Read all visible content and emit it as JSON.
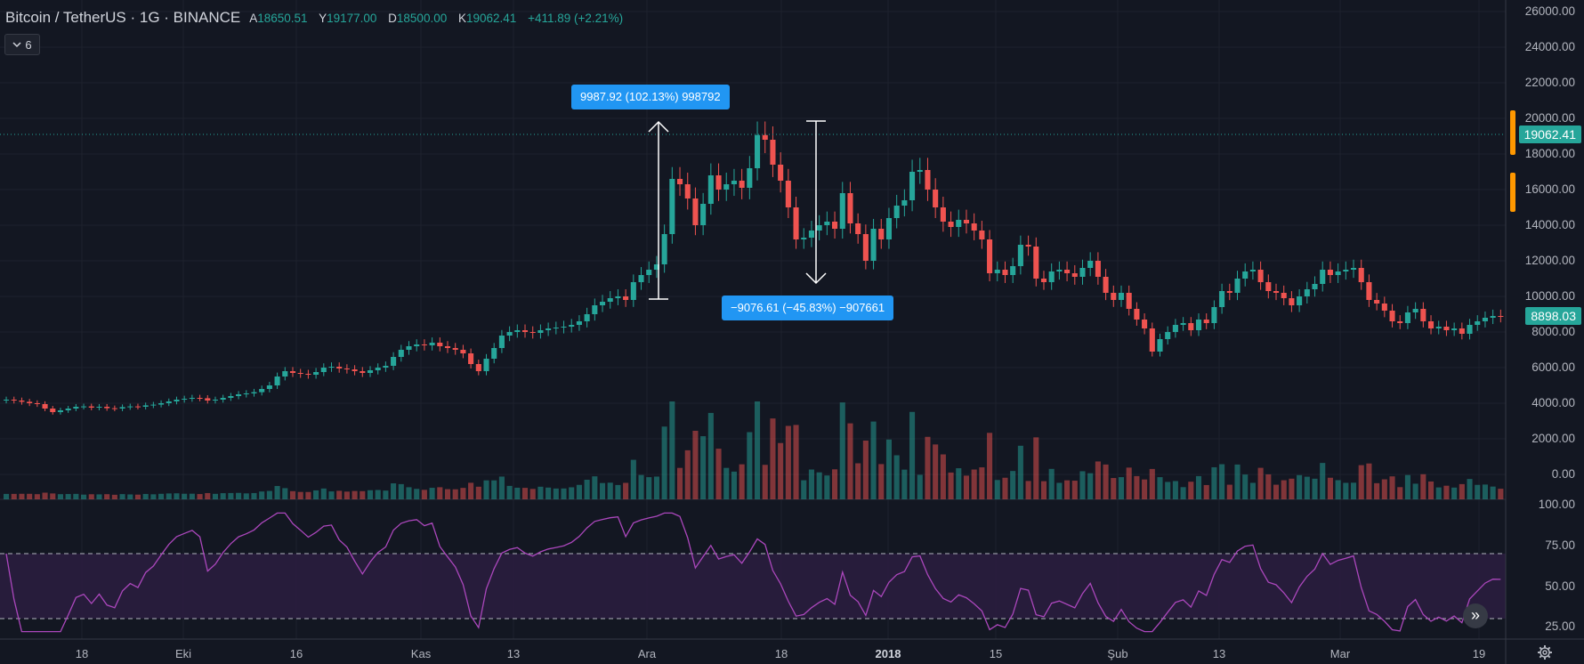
{
  "header": {
    "title": "Bitcoin / TetherUS · 1G · BINANCE",
    "ohlc": [
      {
        "label": "A",
        "value": "18650.51"
      },
      {
        "label": "Y",
        "value": "19177.00"
      },
      {
        "label": "D",
        "value": "18500.00"
      },
      {
        "label": "K",
        "value": "19062.41"
      },
      {
        "label": "",
        "value": "+411.89 (+2.21%)"
      }
    ],
    "indicator_count": "6"
  },
  "price_axis": [
    "26000.00",
    "24000.00",
    "22000.00",
    "20000.00",
    "18000.00",
    "16000.00",
    "14000.00",
    "12000.00",
    "10000.00",
    "8000.00",
    "6000.00",
    "4000.00",
    "2000.00",
    "0.00"
  ],
  "rsi_axis": [
    "100.00",
    "75.00",
    "50.00",
    "25.00"
  ],
  "time_axis": [
    {
      "label": "18",
      "bold": false
    },
    {
      "label": "Eki",
      "bold": false
    },
    {
      "label": "16",
      "bold": false
    },
    {
      "label": "Kas",
      "bold": false
    },
    {
      "label": "13",
      "bold": false
    },
    {
      "label": "Ara",
      "bold": false
    },
    {
      "label": "18",
      "bold": false
    },
    {
      "label": "2018",
      "bold": true
    },
    {
      "label": "15",
      "bold": false
    },
    {
      "label": "Şub",
      "bold": false
    },
    {
      "label": "13",
      "bold": false
    },
    {
      "label": "Mar",
      "bold": false
    },
    {
      "label": "19",
      "bold": false
    }
  ],
  "price_tags": {
    "current": "19062.41",
    "last": "8898.03"
  },
  "measurements": {
    "up": "9987.92 (102.13%) 998792",
    "down": "−9076.61 (−45.83%) −907661"
  },
  "colors": {
    "background": "#131722",
    "up": "#26a69a",
    "down": "#ef5350",
    "rsi_line": "#ab47bc",
    "rsi_band": "#2a1d3e",
    "measure": "#2196f3",
    "alert": "#ff9800"
  },
  "icons": {
    "indicator_toggle": "chevron-down-icon",
    "scroll_forward": "double-chevron-right-icon",
    "settings": "gear-icon"
  },
  "chart_data": {
    "type": "candlestick",
    "symbol": "BTCUSDT",
    "ylim": [
      0,
      26000
    ],
    "rsi_levels": [
      30,
      70
    ],
    "rsi_ylim": [
      20,
      100
    ],
    "closes": [
      4200,
      4150,
      4080,
      4000,
      3950,
      3700,
      3500,
      3600,
      3700,
      3800,
      3820,
      3750,
      3800,
      3720,
      3700,
      3780,
      3820,
      3800,
      3880,
      3920,
      4000,
      4100,
      4200,
      4250,
      4300,
      4280,
      4150,
      4200,
      4300,
      4400,
      4500,
      4550,
      4620,
      4800,
      5000,
      5500,
      5800,
      5700,
      5650,
      5600,
      5750,
      6000,
      6050,
      5950,
      5900,
      5800,
      5700,
      5850,
      6000,
      6100,
      6600,
      7000,
      7200,
      7300,
      7250,
      7400,
      7200,
      7100,
      7000,
      6800,
      6200,
      5800,
      6500,
      7100,
      7800,
      8000,
      8100,
      8000,
      7950,
      8100,
      8200,
      8250,
      8300,
      8400,
      8600,
      9000,
      9500,
      9700,
      9900,
      10000,
      9800,
      10800,
      11200,
      11500,
      11800,
      13500,
      16600,
      16300,
      15500,
      14000,
      15200,
      16800,
      16000,
      16300,
      16500,
      16100,
      17200,
      19062,
      18800,
      17400,
      16500,
      15000,
      13200,
      13300,
      13700,
      14000,
      14200,
      13800,
      15800,
      14100,
      13500,
      12000,
      13800,
      13200,
      14400,
      15100,
      15400,
      17000,
      17100,
      16000,
      15000,
      14200,
      13900,
      14300,
      14100,
      13700,
      13200,
      11300,
      11500,
      11200,
      11700,
      12900,
      12800,
      11000,
      10800,
      11400,
      11500,
      11300,
      11100,
      11600,
      12000,
      11100,
      10200,
      9800,
      10200,
      9300,
      8700,
      8200,
      6900,
      7600,
      8000,
      8400,
      8500,
      8100,
      8700,
      8500,
      9400,
      10300,
      10200,
      11000,
      11400,
      11500,
      10800,
      10300,
      10200,
      9900,
      9500,
      10000,
      10400,
      10700,
      11500,
      11200,
      11400,
      11500,
      11600,
      10800,
      9800,
      9600,
      9200,
      8600,
      8500,
      9100,
      9300,
      8600,
      8200,
      8300,
      8100,
      8200,
      7900,
      8400,
      8600,
      8800,
      8900,
      8898
    ]
  }
}
